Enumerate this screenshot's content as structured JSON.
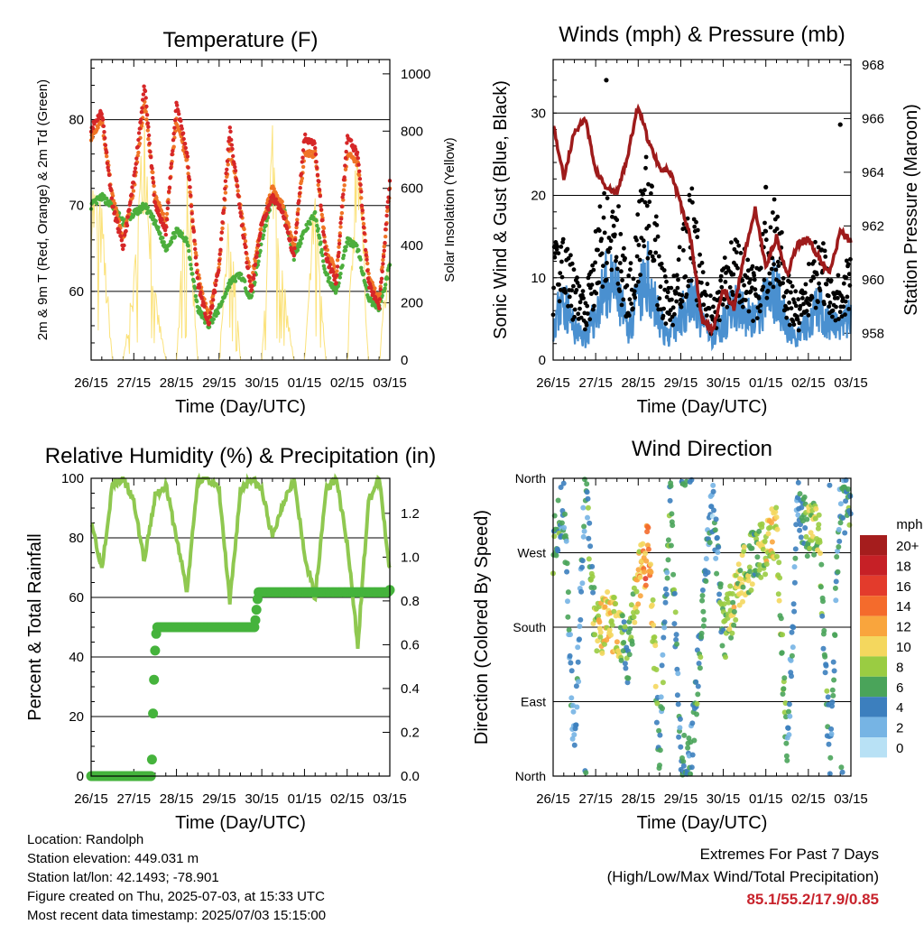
{
  "x_tick_labels": [
    "26/15",
    "27/15",
    "28/15",
    "29/15",
    "30/15",
    "01/15",
    "02/15",
    "03/15"
  ],
  "xlabel": "Time (Day/UTC)",
  "chart_data": [
    {
      "type": "line",
      "title": "Temperature (F)",
      "ylabel": "2m & 9m T (Red, Orange) & 2m Td (Green)",
      "y2label": "Solar Insolation (Yellow)",
      "ylim": [
        52,
        87
      ],
      "y2lim": [
        0,
        1050
      ],
      "yticks": [
        60,
        70,
        80
      ],
      "y2ticks": [
        0,
        200,
        400,
        600,
        800,
        1000
      ],
      "x_hours": [
        0,
        6,
        12,
        18,
        24,
        30,
        36,
        42,
        48,
        54,
        60,
        66,
        72,
        78,
        84,
        90,
        96,
        102,
        108,
        114,
        120,
        126,
        132,
        138,
        144,
        150,
        156,
        162,
        168
      ],
      "series": [
        {
          "name": "2m T",
          "color": "#d62728",
          "values": [
            79,
            81,
            70,
            65,
            73,
            84,
            70,
            67,
            82,
            76,
            61,
            56,
            63,
            79,
            69,
            60,
            68,
            71,
            69,
            64,
            78,
            77,
            64,
            61,
            78,
            76,
            61,
            58,
            73
          ]
        },
        {
          "name": "9m T",
          "color": "#f07426",
          "values": [
            78,
            80,
            71,
            66,
            72,
            82,
            71,
            68,
            80,
            75,
            62,
            57,
            63,
            77,
            70,
            61,
            68,
            72,
            70,
            65,
            76,
            76,
            65,
            62,
            76,
            75,
            62,
            59,
            72
          ]
        },
        {
          "name": "2m Td",
          "color": "#4cae3c",
          "values": [
            70,
            71,
            70,
            68,
            69,
            70,
            68,
            65,
            67,
            66,
            58,
            56,
            58,
            61,
            62,
            59,
            66,
            71,
            70,
            64,
            67,
            69,
            62,
            60,
            66,
            65,
            59,
            58,
            63
          ]
        },
        {
          "name": "Solar Insolation",
          "color": "#fbe27a",
          "axis": "y2",
          "values": [
            700,
            550,
            0,
            0,
            300,
            980,
            250,
            0,
            0,
            780,
            0,
            0,
            0,
            600,
            0,
            0,
            0,
            900,
            300,
            0,
            0,
            700,
            0,
            0,
            0,
            980,
            0,
            0,
            500
          ]
        }
      ]
    },
    {
      "type": "line",
      "title": "Winds (mph) & Pressure (mb)",
      "ylabel": "Sonic Wind & Gust (Blue, Black)",
      "y2label": "Station Pressure (Maroon)",
      "ylim": [
        0,
        36.5
      ],
      "y2lim": [
        957.0,
        968.2
      ],
      "yticks": [
        0,
        10,
        20,
        30
      ],
      "y2ticks": [
        958,
        960,
        962,
        964,
        966,
        968
      ],
      "x_hours": [
        0,
        6,
        12,
        18,
        24,
        30,
        36,
        42,
        48,
        54,
        60,
        66,
        72,
        78,
        84,
        90,
        96,
        102,
        108,
        114,
        120,
        126,
        132,
        138,
        144,
        150,
        156,
        162,
        168
      ],
      "series": [
        {
          "name": "Wind",
          "color": "#4a90d0",
          "values": [
            5,
            8,
            4,
            3,
            6,
            10,
            9,
            4,
            8,
            11,
            5,
            3,
            6,
            9,
            5,
            3,
            5,
            7,
            6,
            5,
            8,
            10,
            4,
            3,
            5,
            7,
            5,
            4,
            6
          ]
        },
        {
          "name": "Gust",
          "color": "#000000",
          "values": [
            10,
            13,
            8,
            6,
            12,
            17,
            15,
            8,
            14,
            20,
            10,
            6,
            11,
            16,
            9,
            5,
            9,
            12,
            10,
            8,
            13,
            16,
            8,
            6,
            9,
            12,
            9,
            8,
            10
          ]
        },
        {
          "name": "Pressure",
          "color": "#9e1b1b",
          "axis": "y2",
          "values": [
            965.8,
            963.8,
            965.5,
            966.0,
            964.1,
            963.4,
            963.2,
            964.6,
            966.5,
            965.1,
            964.2,
            964.0,
            962.8,
            961.4,
            958.5,
            958.1,
            959.7,
            958.9,
            961.0,
            962.6,
            960.5,
            961.6,
            960.2,
            961.3,
            961.5,
            960.8,
            960.2,
            961.8,
            961.4
          ]
        }
      ]
    },
    {
      "type": "line",
      "title": "Relative Humidity (%) & Precipitation (in)",
      "ylabel": "Percent & Total Rainfall",
      "ylim": [
        0,
        100
      ],
      "y2lim": [
        0,
        1.36
      ],
      "yticks": [
        0,
        20,
        40,
        60,
        80,
        100
      ],
      "y2ticks": [
        0.0,
        0.2,
        0.4,
        0.6,
        0.8,
        1.0,
        1.2
      ],
      "x_hours": [
        0,
        6,
        12,
        18,
        24,
        30,
        36,
        42,
        48,
        54,
        60,
        66,
        72,
        78,
        84,
        90,
        96,
        102,
        108,
        114,
        120,
        126,
        132,
        138,
        144,
        150,
        156,
        162,
        168
      ],
      "series": [
        {
          "name": "RH",
          "color": "#8fc850",
          "values": [
            86,
            70,
            98,
            100,
            92,
            72,
            94,
            98,
            80,
            62,
            100,
            100,
            96,
            58,
            96,
            100,
            96,
            80,
            92,
            100,
            74,
            60,
            96,
            100,
            78,
            44,
            92,
            100,
            69
          ]
        },
        {
          "name": "Total Rainfall",
          "color": "#45b33c",
          "axis": "y2",
          "values": [
            0,
            0,
            0,
            0,
            0,
            0,
            0.55,
            0.68,
            0.68,
            0.68,
            0.68,
            0.68,
            0.68,
            0.68,
            0.68,
            0.84,
            0.84,
            0.84,
            0.84,
            0.84,
            0.84,
            0.84,
            0.84,
            0.84,
            0.84,
            0.84,
            0.84,
            0.84,
            0.85
          ]
        }
      ]
    },
    {
      "type": "scatter",
      "title": "Wind Direction",
      "ylabel": "Direction (Colored By Speed)",
      "yticks": [
        "North",
        "East",
        "South",
        "West",
        "North"
      ],
      "ylim": [
        0,
        360
      ],
      "x_hours": [
        0,
        6,
        12,
        18,
        24,
        30,
        36,
        42,
        48,
        54,
        60,
        66,
        72,
        78,
        84,
        90,
        96,
        102,
        108,
        114,
        120,
        126,
        132,
        138,
        144,
        150,
        156,
        162,
        168
      ],
      "direction": [
        280,
        330,
        20,
        350,
        170,
        190,
        180,
        140,
        240,
        275,
        30,
        340,
        20,
        30,
        190,
        330,
        170,
        210,
        250,
        265,
        275,
        300,
        20,
        330,
        290,
        300,
        20,
        340,
        310
      ],
      "speed": [
        6,
        5,
        3,
        4,
        8,
        11,
        10,
        5,
        11,
        14,
        4,
        6,
        5,
        4,
        6,
        3,
        7,
        9,
        8,
        7,
        9,
        10,
        5,
        4,
        7,
        8,
        5,
        4,
        6
      ],
      "colorbar": {
        "unit": "mph",
        "labels": [
          "20+",
          "18",
          "16",
          "14",
          "12",
          "10",
          "8",
          "6",
          "4",
          "2",
          "0"
        ],
        "colors": [
          "#a51d1d",
          "#c62026",
          "#e33b2c",
          "#f46b2c",
          "#f9a53d",
          "#f4d75e",
          "#9acc42",
          "#4aa45a",
          "#3c7fbe",
          "#76b4e4",
          "#b8e1f5"
        ]
      }
    }
  ],
  "info_lines": [
    "Location: Randolph",
    "Station elevation: 449.031 m",
    "Station lat/lon: 42.1493; -78.901",
    "Figure created on Thu, 2025-07-03, at 15:33 UTC",
    "Most recent data timestamp: 2025/07/03 15:15:00"
  ],
  "extremes": {
    "title": "Extremes For Past 7 Days",
    "subtitle": "(High/Low/Max Wind/Total Precipitation)",
    "values": "85.1/55.2/17.9/0.85"
  }
}
